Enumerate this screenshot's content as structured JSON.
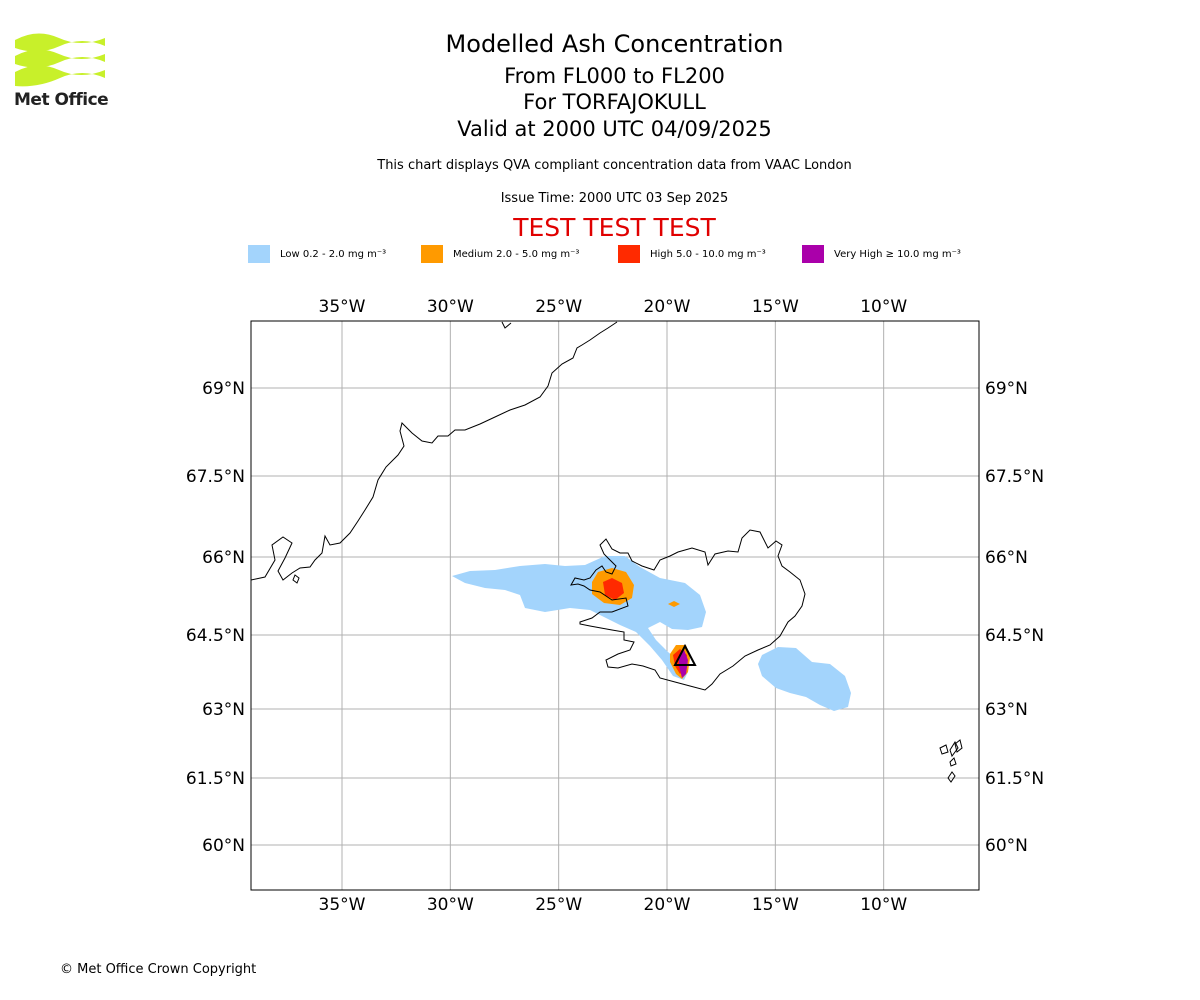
{
  "logo": {
    "text": "Met Office",
    "accent_color": "#c8f02a"
  },
  "title": {
    "line1": "Modelled Ash Concentration",
    "line2": "From FL000 to FL200",
    "line3": "For TORFAJOKULL",
    "line4": "Valid at 2000 UTC 04/09/2025"
  },
  "subtitle": "This chart displays QVA compliant concentration data from VAAC London",
  "issue_time": "Issue Time: 2000 UTC 03 Sep 2025",
  "test_banner": "TEST TEST TEST",
  "legend": [
    {
      "label": "Low 0.2 - 2.0 mg m⁻³",
      "color": "#a3d4fc"
    },
    {
      "label": "Medium 2.0 - 5.0 mg m⁻³",
      "color": "#ff9a00"
    },
    {
      "label": "High 5.0 - 10.0 mg m⁻³",
      "color": "#ff2a00"
    },
    {
      "label": "Very High ≥ 10.0 mg m⁻³",
      "color": "#aa00aa"
    }
  ],
  "map": {
    "lon_range": [
      -39.2,
      -5.6
    ],
    "lat_range": [
      59.2,
      70.2
    ],
    "lon_ticks": [
      {
        "value": -35,
        "label": "35°W"
      },
      {
        "value": -30,
        "label": "30°W"
      },
      {
        "value": -25,
        "label": "25°W"
      },
      {
        "value": -20,
        "label": "20°W"
      },
      {
        "value": -15,
        "label": "15°W"
      },
      {
        "value": -10,
        "label": "10°W"
      }
    ],
    "lat_ticks": [
      {
        "value": 69,
        "label": "69°N"
      },
      {
        "value": 67.5,
        "label": "67.5°N"
      },
      {
        "value": 66,
        "label": "66°N"
      },
      {
        "value": 64.5,
        "label": "64.5°N"
      },
      {
        "value": 63,
        "label": "63°N"
      },
      {
        "value": 61.5,
        "label": "61.5°N"
      },
      {
        "value": 60,
        "label": "60°N"
      }
    ],
    "gridlines": true,
    "volcano_symbol": "triangle-icon"
  },
  "copyright": "© Met Office Crown Copyright"
}
